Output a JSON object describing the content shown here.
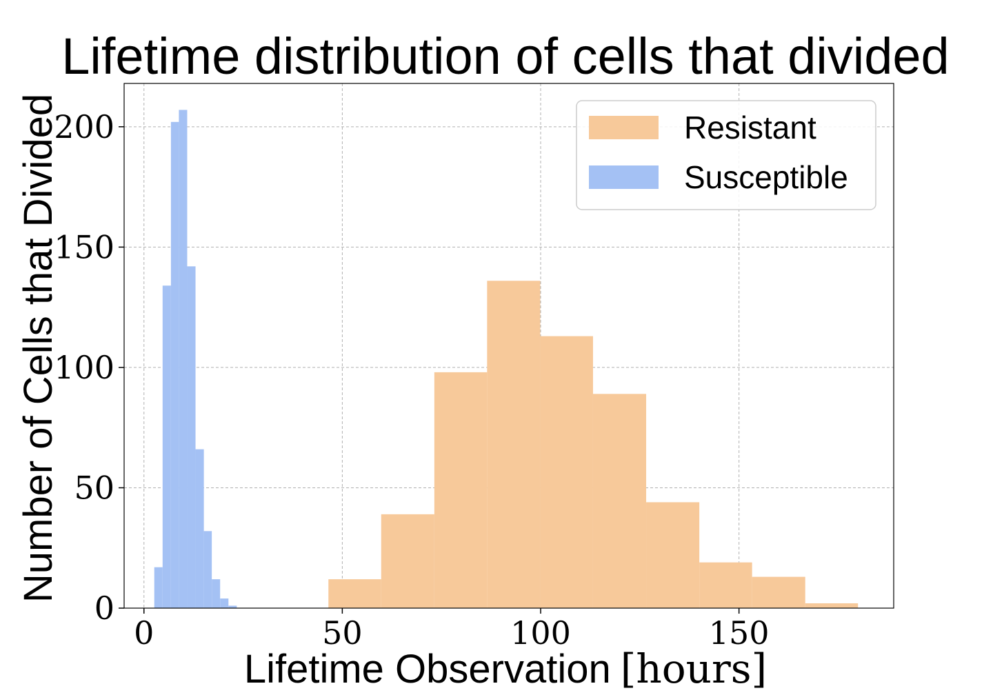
{
  "chart_data": {
    "type": "bar",
    "title": "Lifetime distribution of cells that divided",
    "xlabel": "Lifetime Observation",
    "xlabel_unit": "[hours]",
    "ylabel": "Number of Cells that Divided",
    "xlim": [
      -5,
      189
    ],
    "ylim": [
      0,
      218
    ],
    "xticks": [
      0,
      50,
      100,
      150
    ],
    "yticks": [
      0,
      50,
      100,
      150,
      200
    ],
    "grid": true,
    "legend_position": "top-right",
    "series": [
      {
        "name": "Resistant",
        "color": "#f7c99a",
        "bins": [
          {
            "x0": 46.5,
            "x1": 59.8,
            "value": 12
          },
          {
            "x0": 59.8,
            "x1": 73.2,
            "value": 39
          },
          {
            "x0": 73.2,
            "x1": 86.5,
            "value": 98
          },
          {
            "x0": 86.5,
            "x1": 99.9,
            "value": 136
          },
          {
            "x0": 99.9,
            "x1": 113.2,
            "value": 113
          },
          {
            "x0": 113.2,
            "x1": 126.6,
            "value": 89
          },
          {
            "x0": 126.6,
            "x1": 140.0,
            "value": 44
          },
          {
            "x0": 140.0,
            "x1": 153.3,
            "value": 19
          },
          {
            "x0": 153.3,
            "x1": 166.7,
            "value": 13
          },
          {
            "x0": 166.7,
            "x1": 180.0,
            "value": 2
          }
        ]
      },
      {
        "name": "Susceptible",
        "color": "#a4c1f4",
        "bins": [
          {
            "x0": 2.6,
            "x1": 4.7,
            "value": 17
          },
          {
            "x0": 4.7,
            "x1": 6.8,
            "value": 134
          },
          {
            "x0": 6.8,
            "x1": 8.8,
            "value": 202
          },
          {
            "x0": 8.8,
            "x1": 10.9,
            "value": 207
          },
          {
            "x0": 10.9,
            "x1": 13.0,
            "value": 142
          },
          {
            "x0": 13.0,
            "x1": 15.1,
            "value": 66
          },
          {
            "x0": 15.1,
            "x1": 17.1,
            "value": 32
          },
          {
            "x0": 17.1,
            "x1": 19.2,
            "value": 12
          },
          {
            "x0": 19.2,
            "x1": 21.3,
            "value": 4
          },
          {
            "x0": 21.3,
            "x1": 23.4,
            "value": 1
          }
        ]
      }
    ]
  }
}
